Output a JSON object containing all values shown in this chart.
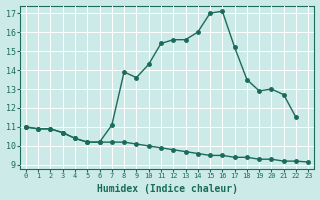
{
  "xlabel": "Humidex (Indice chaleur)",
  "bg_color": "#cceae7",
  "grid_color": "#ffffff",
  "line_color": "#1a6b5a",
  "xlim": [
    -0.5,
    23.5
  ],
  "ylim": [
    8.8,
    17.4
  ],
  "xticks": [
    0,
    1,
    2,
    3,
    4,
    5,
    6,
    7,
    8,
    9,
    10,
    11,
    12,
    13,
    14,
    15,
    16,
    17,
    18,
    19,
    20,
    21,
    22,
    23
  ],
  "yticks": [
    9,
    10,
    11,
    12,
    13,
    14,
    15,
    16,
    17
  ],
  "curve_upper_x": [
    0,
    1,
    2,
    3,
    4,
    5,
    6,
    7,
    8,
    9,
    10,
    11,
    12,
    13,
    14,
    15,
    16,
    17,
    18,
    19,
    20,
    21,
    22
  ],
  "curve_upper_y": [
    11,
    10.9,
    10.9,
    10.7,
    10.4,
    10.2,
    10.2,
    11.1,
    13.9,
    13.6,
    14.3,
    15.4,
    15.6,
    15.6,
    16.0,
    17.0,
    17.1,
    15.2,
    13.5,
    12.9,
    13.0,
    12.7,
    11.5
  ],
  "curve_lower_x": [
    0,
    1,
    2,
    3,
    4,
    5,
    6,
    7,
    8,
    9,
    10,
    11,
    12,
    13,
    14,
    15,
    16,
    17,
    18,
    19,
    20,
    21,
    22,
    23
  ],
  "curve_lower_y": [
    11,
    10.9,
    10.9,
    10.7,
    10.4,
    10.2,
    10.2,
    10.2,
    10.2,
    10.1,
    10.0,
    9.9,
    9.8,
    9.7,
    9.6,
    9.5,
    9.5,
    9.4,
    9.4,
    9.3,
    9.3,
    9.2,
    9.2,
    9.15
  ]
}
